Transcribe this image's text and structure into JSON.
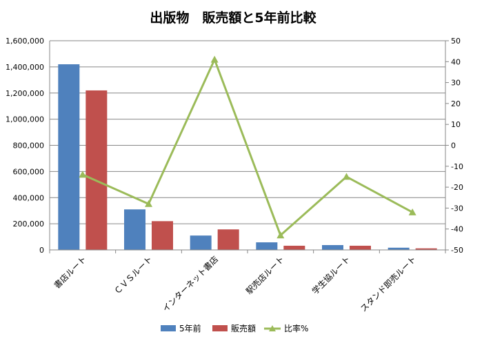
{
  "chart_data": {
    "type": "bar",
    "title": "出版物　販売額と5年前比較",
    "categories": [
      "書店ルート",
      "ＣＶＳルート",
      "インターネット書店",
      "駅売店ルート",
      "学生協ルート",
      "スタンド即売ルート"
    ],
    "series": [
      {
        "name": "5年前",
        "type": "bar",
        "axis": "left",
        "color": "#4F81BD",
        "values": [
          1420000,
          310000,
          110000,
          58000,
          37000,
          17000
        ]
      },
      {
        "name": "販売額",
        "type": "bar",
        "axis": "left",
        "color": "#C0504D",
        "values": [
          1220000,
          220000,
          157000,
          32000,
          32000,
          12000
        ]
      },
      {
        "name": "比率%",
        "type": "line",
        "axis": "right",
        "color": "#9BBB59",
        "marker": "triangle",
        "values": [
          -14,
          -28,
          41,
          -43,
          -15,
          -32
        ]
      }
    ],
    "y_left": {
      "min": 0,
      "max": 1600000,
      "step": 200000,
      "tick_labels": [
        "0",
        "200,000",
        "400,000",
        "600,000",
        "800,000",
        "1,000,000",
        "1,200,000",
        "1,400,000",
        "1,600,000"
      ]
    },
    "y_right": {
      "min": -50,
      "max": 50,
      "step": 10,
      "tick_labels": [
        "-50",
        "-40",
        "-30",
        "-20",
        "-10",
        "0",
        "10",
        "20",
        "30",
        "40",
        "50"
      ]
    },
    "grid": true,
    "legend_position": "bottom"
  }
}
